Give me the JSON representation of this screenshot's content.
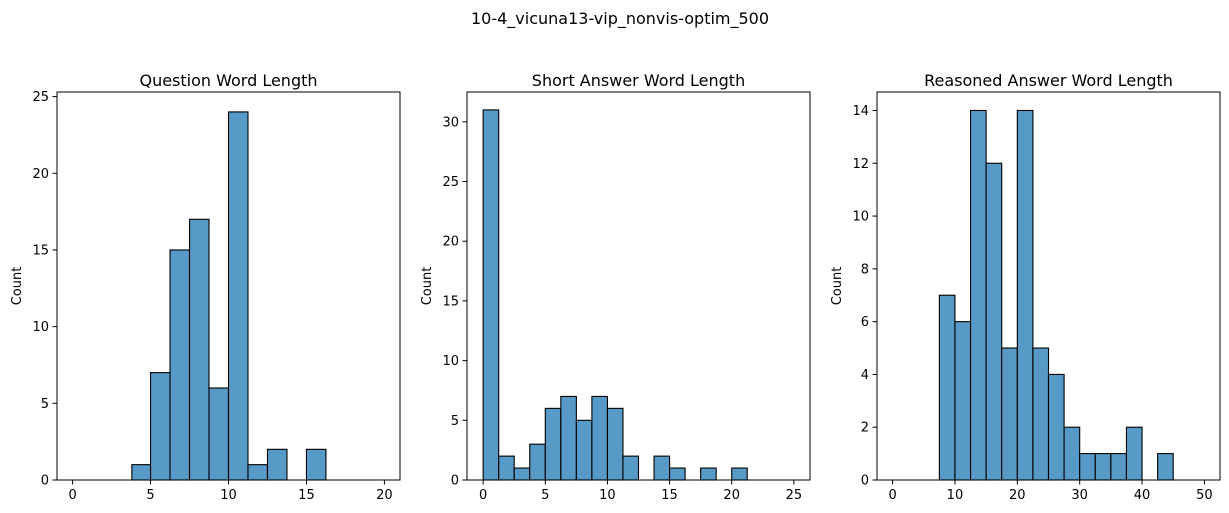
{
  "figure": {
    "suptitle": "10-4_vicuna13-vip_nonvis-optim_500",
    "bar_color": "#5799c7",
    "edge_color": "#000000"
  },
  "chart_data": [
    {
      "type": "bar",
      "title": "Question Word Length",
      "xlabel": "",
      "ylabel": "Count",
      "xlim": [
        -1,
        21
      ],
      "ylim": [
        0,
        25.3
      ],
      "xticks": [
        0,
        5,
        10,
        15,
        20
      ],
      "yticks": [
        0,
        5,
        10,
        15,
        20,
        25
      ],
      "bins": [
        {
          "x0": 3.8,
          "x1": 5.0,
          "count": 1
        },
        {
          "x0": 5.0,
          "x1": 6.25,
          "count": 7
        },
        {
          "x0": 6.25,
          "x1": 7.5,
          "count": 15
        },
        {
          "x0": 7.5,
          "x1": 8.75,
          "count": 17
        },
        {
          "x0": 8.75,
          "x1": 10.0,
          "count": 6
        },
        {
          "x0": 10.0,
          "x1": 11.25,
          "count": 24
        },
        {
          "x0": 11.25,
          "x1": 12.5,
          "count": 1
        },
        {
          "x0": 12.5,
          "x1": 13.75,
          "count": 2
        },
        {
          "x0": 15.0,
          "x1": 16.25,
          "count": 2
        }
      ]
    },
    {
      "type": "bar",
      "title": "Short Answer Word Length",
      "xlabel": "",
      "ylabel": "Count",
      "xlim": [
        -1.3,
        26.3
      ],
      "ylim": [
        0,
        32.5
      ],
      "xticks": [
        0,
        5,
        10,
        15,
        20,
        25
      ],
      "yticks": [
        0,
        5,
        10,
        15,
        20,
        25,
        30
      ],
      "bins": [
        {
          "x0": 0.0,
          "x1": 1.25,
          "count": 31
        },
        {
          "x0": 1.25,
          "x1": 2.5,
          "count": 2
        },
        {
          "x0": 2.5,
          "x1": 3.75,
          "count": 1
        },
        {
          "x0": 3.75,
          "x1": 5.0,
          "count": 3
        },
        {
          "x0": 5.0,
          "x1": 6.25,
          "count": 6
        },
        {
          "x0": 6.25,
          "x1": 7.5,
          "count": 7
        },
        {
          "x0": 7.5,
          "x1": 8.75,
          "count": 5
        },
        {
          "x0": 8.75,
          "x1": 10.0,
          "count": 7
        },
        {
          "x0": 10.0,
          "x1": 11.25,
          "count": 6
        },
        {
          "x0": 11.25,
          "x1": 12.5,
          "count": 2
        },
        {
          "x0": 13.75,
          "x1": 15.0,
          "count": 2
        },
        {
          "x0": 15.0,
          "x1": 16.25,
          "count": 1
        },
        {
          "x0": 17.5,
          "x1": 18.75,
          "count": 1
        },
        {
          "x0": 20.0,
          "x1": 21.25,
          "count": 1
        }
      ]
    },
    {
      "type": "bar",
      "title": "Reasoned Answer Word Length",
      "xlabel": "",
      "ylabel": "Count",
      "xlim": [
        -2.5,
        52.5
      ],
      "ylim": [
        0,
        14.7
      ],
      "xticks": [
        0,
        10,
        20,
        30,
        40,
        50
      ],
      "yticks": [
        0,
        2,
        4,
        6,
        8,
        10,
        12,
        14
      ],
      "bins": [
        {
          "x0": 7.5,
          "x1": 10.0,
          "count": 7
        },
        {
          "x0": 10.0,
          "x1": 12.5,
          "count": 6
        },
        {
          "x0": 12.5,
          "x1": 15.0,
          "count": 14
        },
        {
          "x0": 15.0,
          "x1": 17.5,
          "count": 12
        },
        {
          "x0": 17.5,
          "x1": 20.0,
          "count": 5
        },
        {
          "x0": 20.0,
          "x1": 22.5,
          "count": 14
        },
        {
          "x0": 22.5,
          "x1": 25.0,
          "count": 5
        },
        {
          "x0": 25.0,
          "x1": 27.5,
          "count": 4
        },
        {
          "x0": 27.5,
          "x1": 30.0,
          "count": 2
        },
        {
          "x0": 30.0,
          "x1": 32.5,
          "count": 1
        },
        {
          "x0": 32.5,
          "x1": 35.0,
          "count": 1
        },
        {
          "x0": 35.0,
          "x1": 37.5,
          "count": 1
        },
        {
          "x0": 37.5,
          "x1": 40.0,
          "count": 2
        },
        {
          "x0": 42.5,
          "x1": 45.0,
          "count": 1
        }
      ]
    }
  ]
}
